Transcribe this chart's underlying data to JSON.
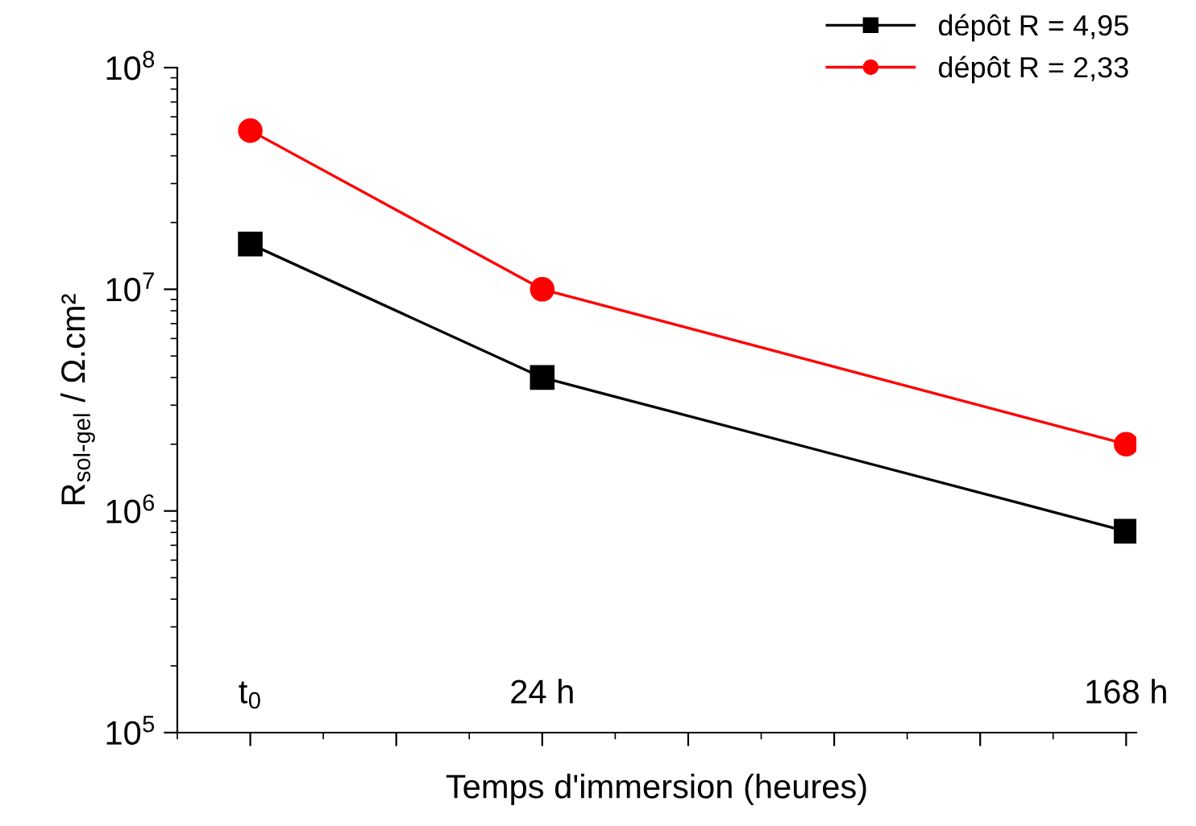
{
  "chart_data": {
    "type": "line",
    "xlabel": "Temps d'immersion (heures)",
    "ylabel": "R$_{sol-gel}$ / Ω.cm²",
    "categories": [
      "t$_{0}$",
      null,
      "24 h",
      null,
      null,
      null,
      "168 h"
    ],
    "series": [
      {
        "name": "dépôt R = 4,95",
        "color": "#000000",
        "marker": "square",
        "values": [
          16000000,
          null,
          4000000,
          null,
          null,
          null,
          810000
        ]
      },
      {
        "name": "dépôt R = 2,33",
        "color": "#ff0000",
        "marker": "circle",
        "values": [
          52000000,
          null,
          10000000,
          null,
          null,
          null,
          2000000
        ]
      }
    ],
    "log": "y",
    "ylim": [
      100000,
      100000000
    ],
    "yticks": [
      {
        "value": 100000,
        "label": "10$^{5}$"
      },
      {
        "value": 1000000,
        "label": "10$^{6}$"
      },
      {
        "value": 10000000,
        "label": "10$^{7}$"
      },
      {
        "value": 100000000,
        "label": "10$^{8}$"
      }
    ],
    "grid": false,
    "legend": "top right",
    "line_style": "solid"
  }
}
